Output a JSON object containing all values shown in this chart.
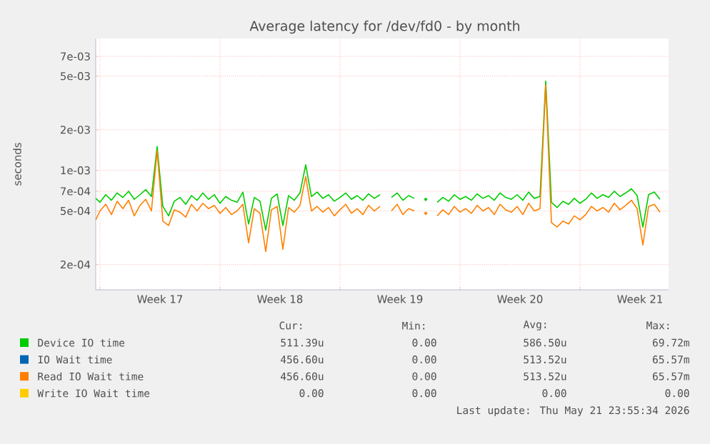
{
  "chart_data": {
    "type": "line",
    "title": "Average latency for /dev/fd0 - by month",
    "ylabel": "seconds",
    "log": "y",
    "grid": true,
    "legend": "bottom",
    "ylim": [
      0.00013,
      0.0095
    ],
    "yticks": [
      {
        "value": 0.0002,
        "label": "2e-04"
      },
      {
        "value": 0.0005,
        "label": "5e-04"
      },
      {
        "value": 0.0007,
        "label": "7e-04"
      },
      {
        "value": 0.001,
        "label": "1e-03"
      },
      {
        "value": 0.002,
        "label": "2e-03"
      },
      {
        "value": 0.005,
        "label": "5e-03"
      },
      {
        "value": 0.007,
        "label": "7e-03"
      }
    ],
    "xlim": [
      "2026-04-19T18:00",
      "2026-05-23T04:00"
    ],
    "xticks": [
      {
        "value": "2026-04-20T00:00",
        "label": null
      },
      {
        "value": "2026-04-27T00:00",
        "label": null
      },
      {
        "value": "2026-05-04T00:00",
        "label": null
      },
      {
        "value": "2026-05-11T00:00",
        "label": null
      },
      {
        "value": "2026-05-18T00:00",
        "label": null
      },
      {
        "value": "2026-04-23T12:00",
        "label": "Week 17"
      },
      {
        "value": "2026-04-30T12:00",
        "label": "Week 18"
      },
      {
        "value": "2026-05-07T12:00",
        "label": "Week 19"
      },
      {
        "value": "2026-05-14T12:00",
        "label": "Week 20"
      },
      {
        "value": "2026-05-21T12:00",
        "label": "Week 21"
      }
    ],
    "x": [
      "2026-04-19T18:00",
      "2026-04-20T00:00",
      "2026-04-20T08:00",
      "2026-04-20T16:00",
      "2026-04-21T00:00",
      "2026-04-21T08:00",
      "2026-04-21T16:00",
      "2026-04-22T00:00",
      "2026-04-22T08:00",
      "2026-04-22T16:00",
      "2026-04-23T00:00",
      "2026-04-23T08:00",
      "2026-04-23T16:00",
      "2026-04-24T00:00",
      "2026-04-24T08:00",
      "2026-04-24T16:00",
      "2026-04-25T00:00",
      "2026-04-25T08:00",
      "2026-04-25T16:00",
      "2026-04-26T00:00",
      "2026-04-26T08:00",
      "2026-04-26T16:00",
      "2026-04-27T00:00",
      "2026-04-27T08:00",
      "2026-04-27T16:00",
      "2026-04-28T00:00",
      "2026-04-28T08:00",
      "2026-04-28T16:00",
      "2026-04-29T00:00",
      "2026-04-29T08:00",
      "2026-04-29T16:00",
      "2026-04-30T00:00",
      "2026-04-30T08:00",
      "2026-04-30T16:00",
      "2026-05-01T00:00",
      "2026-05-01T08:00",
      "2026-05-01T16:00",
      "2026-05-02T00:00",
      "2026-05-02T08:00",
      "2026-05-02T16:00",
      "2026-05-03T00:00",
      "2026-05-03T08:00",
      "2026-05-03T16:00",
      "2026-05-04T00:00",
      "2026-05-04T08:00",
      "2026-05-04T16:00",
      "2026-05-05T00:00",
      "2026-05-05T08:00",
      "2026-05-05T16:00",
      "2026-05-06T00:00",
      "2026-05-06T08:00",
      "2026-05-06T16:00",
      "2026-05-07T00:00",
      "2026-05-07T08:00",
      "2026-05-07T16:00",
      "2026-05-08T00:00",
      "2026-05-08T08:00",
      "2026-05-08T16:00",
      "2026-05-09T00:00",
      "2026-05-09T08:00",
      "2026-05-09T16:00",
      "2026-05-10T00:00",
      "2026-05-10T08:00",
      "2026-05-10T16:00",
      "2026-05-11T00:00",
      "2026-05-11T08:00",
      "2026-05-11T16:00",
      "2026-05-12T00:00",
      "2026-05-12T08:00",
      "2026-05-12T16:00",
      "2026-05-13T00:00",
      "2026-05-13T08:00",
      "2026-05-13T16:00",
      "2026-05-14T00:00",
      "2026-05-14T08:00",
      "2026-05-14T16:00",
      "2026-05-15T00:00",
      "2026-05-15T08:00",
      "2026-05-15T16:00",
      "2026-05-16T00:00",
      "2026-05-16T08:00",
      "2026-05-16T16:00",
      "2026-05-17T00:00",
      "2026-05-17T08:00",
      "2026-05-17T16:00",
      "2026-05-18T00:00",
      "2026-05-18T08:00",
      "2026-05-18T16:00",
      "2026-05-19T00:00",
      "2026-05-19T08:00",
      "2026-05-19T16:00",
      "2026-05-20T00:00",
      "2026-05-20T08:00",
      "2026-05-20T16:00",
      "2026-05-21T00:00",
      "2026-05-21T08:00",
      "2026-05-21T16:00",
      "2026-05-22T00:00",
      "2026-05-22T08:00",
      "2026-05-22T16:00"
    ],
    "series": [
      {
        "name": "Device IO time",
        "color": "#00cc00",
        "values": [
          0.00062,
          0.00058,
          0.00066,
          0.0006,
          0.00068,
          0.00063,
          0.0007,
          0.00061,
          0.00066,
          0.00072,
          0.00064,
          0.0015,
          0.00054,
          0.00046,
          0.00059,
          0.00063,
          0.00056,
          0.00065,
          0.0006,
          0.00068,
          0.00061,
          0.00066,
          0.00057,
          0.00064,
          0.0006,
          0.00058,
          0.00069,
          0.0004,
          0.00063,
          0.00059,
          0.00036,
          0.00062,
          0.00067,
          0.00039,
          0.00065,
          0.0006,
          0.00068,
          0.0011,
          0.00064,
          0.00069,
          0.00062,
          0.00066,
          0.00059,
          0.00063,
          0.00068,
          0.00061,
          0.00065,
          0.0006,
          0.00067,
          0.00062,
          0.00066,
          null,
          0.00063,
          0.00068,
          0.0006,
          0.00065,
          0.00062,
          null,
          0.00061,
          null,
          0.00058,
          0.00063,
          0.00059,
          0.00066,
          0.00061,
          0.00064,
          0.0006,
          0.00067,
          0.00062,
          0.00065,
          0.0006,
          0.00068,
          0.00063,
          0.00061,
          0.00066,
          0.0006,
          0.00069,
          0.00062,
          0.00064,
          0.0046,
          0.00058,
          0.00053,
          0.00059,
          0.00056,
          0.00062,
          0.00057,
          0.00061,
          0.00068,
          0.00062,
          0.00066,
          0.00063,
          0.0007,
          0.00064,
          0.00068,
          0.00073,
          0.00065,
          0.00038,
          0.00066,
          0.00069,
          0.00061
        ]
      },
      {
        "name": "IO Wait time",
        "color": "#0066b3",
        "values": [
          null,
          null,
          null,
          null,
          null,
          null,
          null,
          null,
          null,
          null,
          null,
          null,
          null,
          null,
          null,
          null,
          null,
          null,
          null,
          null,
          null,
          null,
          null,
          null,
          null,
          null,
          null,
          null,
          null,
          null,
          null,
          null,
          null,
          null,
          null,
          null,
          null,
          null,
          null,
          null,
          null,
          null,
          null,
          null,
          null,
          null,
          null,
          null,
          null,
          null,
          null,
          null,
          null,
          null,
          null,
          null,
          null,
          null,
          null,
          null,
          null,
          null,
          null,
          null,
          null,
          null,
          null,
          null,
          null,
          null,
          null,
          null,
          null,
          null,
          null,
          null,
          null,
          null,
          null,
          null,
          null,
          null,
          null,
          null,
          null,
          null,
          null,
          null,
          null,
          null,
          null,
          null,
          null,
          null,
          null,
          null,
          null,
          null,
          null,
          null
        ]
      },
      {
        "name": "Read IO Wait time",
        "color": "#ff8000",
        "values": [
          0.00043,
          0.0005,
          0.00056,
          0.00047,
          0.00059,
          0.00052,
          0.0006,
          0.00046,
          0.00055,
          0.00061,
          0.0005,
          0.0014,
          0.00042,
          0.00039,
          0.00051,
          0.00049,
          0.00045,
          0.00056,
          0.0005,
          0.00057,
          0.00052,
          0.00055,
          0.00048,
          0.00053,
          0.00047,
          0.0005,
          0.00056,
          0.00029,
          0.00052,
          0.00048,
          0.00025,
          0.00051,
          0.00054,
          0.00026,
          0.00053,
          0.00049,
          0.00055,
          0.0009,
          0.0005,
          0.00054,
          0.00049,
          0.00053,
          0.00046,
          0.00051,
          0.00056,
          0.00048,
          0.00052,
          0.00047,
          0.00055,
          0.0005,
          0.00054,
          null,
          0.0005,
          0.00056,
          0.00047,
          0.00052,
          0.0005,
          null,
          0.00048,
          null,
          0.00046,
          0.00051,
          0.00047,
          0.00054,
          0.00049,
          0.00052,
          0.00048,
          0.00055,
          0.0005,
          0.00053,
          0.00047,
          0.00056,
          0.00051,
          0.00049,
          0.00054,
          0.00047,
          0.00057,
          0.0005,
          0.00052,
          0.0043,
          0.00041,
          0.00038,
          0.00042,
          0.0004,
          0.00046,
          0.00043,
          0.00047,
          0.00054,
          0.0005,
          0.00053,
          0.00049,
          0.00057,
          0.00051,
          0.00055,
          0.0006,
          0.00052,
          0.00028,
          0.00054,
          0.00056,
          0.00049
        ]
      },
      {
        "name": "Write IO Wait time",
        "color": "#ffcc00",
        "values": [
          null,
          null,
          null,
          null,
          null,
          null,
          null,
          null,
          null,
          null,
          null,
          null,
          null,
          null,
          null,
          null,
          null,
          null,
          null,
          null,
          null,
          null,
          null,
          null,
          null,
          null,
          null,
          null,
          null,
          null,
          null,
          null,
          null,
          null,
          null,
          null,
          null,
          null,
          null,
          null,
          null,
          null,
          null,
          null,
          null,
          null,
          null,
          null,
          null,
          null,
          null,
          null,
          null,
          null,
          null,
          null,
          null,
          null,
          null,
          null,
          null,
          null,
          null,
          null,
          null,
          null,
          null,
          null,
          null,
          null,
          null,
          null,
          null,
          null,
          null,
          null,
          null,
          null,
          null,
          null,
          null,
          null,
          null,
          null,
          null,
          null,
          null,
          null,
          null,
          null,
          null,
          null,
          null,
          null,
          null,
          null,
          null,
          null,
          null,
          null
        ]
      }
    ],
    "annotations": [
      "Cur:",
      "Min:",
      "Avg:",
      "Max:",
      "511.39u",
      "0.00",
      "586.50u",
      "69.72m",
      "456.60u",
      "0.00",
      "513.52u",
      "65.57m",
      "456.60u",
      "0.00",
      "513.52u",
      "65.57m",
      "0.00",
      "0.00",
      "0.00",
      "0.00",
      "Last update: Thu May 21 23:55:34 2026"
    ]
  }
}
